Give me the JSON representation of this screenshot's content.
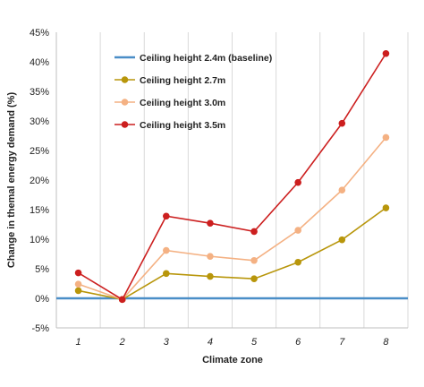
{
  "chart_data": {
    "type": "line",
    "x": [
      1,
      2,
      3,
      4,
      5,
      6,
      7,
      8
    ],
    "xlabel": "Climate zone",
    "ylabel": "Change in themal energy demand (%)",
    "ylim": [
      -5,
      45
    ],
    "yticks": [
      "-5%",
      "0%",
      "5%",
      "10%",
      "15%",
      "20%",
      "25%",
      "30%",
      "35%",
      "40%",
      "45%"
    ],
    "xticks": [
      "1",
      "2",
      "3",
      "4",
      "5",
      "6",
      "7",
      "8"
    ],
    "grid": "vertical",
    "legend_position": "top-left",
    "series": [
      {
        "name": "Ceiling height 2.4m (baseline)",
        "color": "#4a8ec7",
        "marker": "none",
        "values": [
          0,
          0,
          0,
          0,
          0,
          0,
          0,
          0
        ]
      },
      {
        "name": "Ceiling height 2.7m",
        "color": "#b8960b",
        "marker": "circle",
        "values": [
          1.3,
          -0.2,
          4.2,
          3.7,
          3.3,
          6.1,
          9.9,
          15.3
        ]
      },
      {
        "name": "Ceiling height 3.0m",
        "color": "#f4b183",
        "marker": "circle",
        "values": [
          2.4,
          -0.2,
          8.1,
          7.1,
          6.4,
          11.5,
          18.3,
          27.2
        ]
      },
      {
        "name": "Ceiling height 3.5m",
        "color": "#cc1f1f",
        "marker": "circle",
        "values": [
          4.3,
          -0.2,
          13.9,
          12.7,
          11.3,
          19.6,
          29.6,
          41.4
        ]
      }
    ]
  }
}
